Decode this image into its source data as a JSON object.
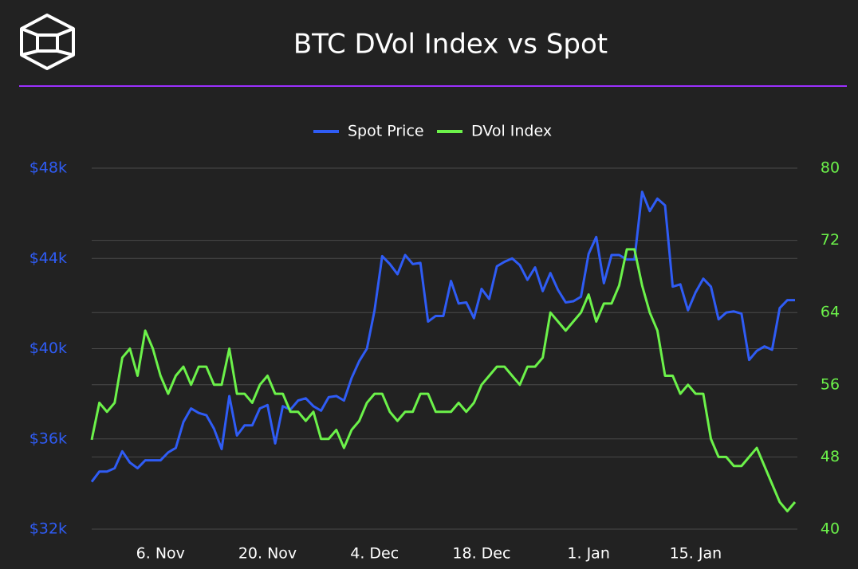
{
  "chart_data": {
    "type": "line",
    "title": "BTC DVol Index vs Spot",
    "categories": [
      null,
      null,
      null,
      null,
      null,
      null,
      null,
      null,
      null,
      "6. Nov",
      null,
      null,
      null,
      null,
      null,
      null,
      null,
      null,
      null,
      null,
      null,
      null,
      null,
      "20. Nov",
      null,
      null,
      null,
      null,
      null,
      null,
      null,
      null,
      null,
      null,
      null,
      null,
      null,
      "4. Dec",
      null,
      null,
      null,
      null,
      null,
      null,
      null,
      null,
      null,
      null,
      null,
      null,
      null,
      "18. Dec",
      null,
      null,
      null,
      null,
      null,
      null,
      null,
      null,
      null,
      null,
      null,
      null,
      null,
      "1. Jan",
      null,
      null,
      null,
      null,
      null,
      null,
      null,
      null,
      null,
      null,
      null,
      null,
      null,
      "15. Jan",
      null,
      null,
      null,
      null,
      null,
      null,
      null,
      null,
      null,
      null,
      null,
      null,
      null
    ],
    "series": [
      {
        "name": "Spot Price",
        "color": "#2f5cf5",
        "axis": "y",
        "values": [
          34100,
          34550,
          34550,
          34700,
          35450,
          34950,
          34700,
          35050,
          35050,
          35050,
          35400,
          35600,
          36750,
          37350,
          37150,
          37050,
          36450,
          35550,
          37900,
          36150,
          36600,
          36600,
          37350,
          37500,
          35800,
          37450,
          37300,
          37700,
          37800,
          37450,
          37250,
          37850,
          37900,
          37700,
          38700,
          39450,
          40000,
          41700,
          44100,
          43750,
          43300,
          44150,
          43750,
          43800,
          41200,
          41450,
          41450,
          43000,
          42000,
          42050,
          41350,
          42650,
          42200,
          43650,
          43850,
          44000,
          43700,
          43050,
          43600,
          42550,
          43350,
          42600,
          42050,
          42100,
          42300,
          44200,
          44950,
          42900,
          44150,
          44150,
          43950,
          43950,
          46950,
          46100,
          46650,
          46350,
          42750,
          42850,
          41700,
          42500,
          43100,
          42750,
          41300,
          41600,
          41650,
          41550,
          39500,
          39900,
          40100,
          39950,
          41800,
          42150,
          42150
        ]
      },
      {
        "name": "DVol Index",
        "color": "#6cf24a",
        "axis": "y2",
        "values": [
          49.9,
          54,
          53,
          54,
          59,
          60,
          57,
          62,
          60,
          57,
          55,
          57,
          58,
          56,
          58,
          58,
          56,
          56,
          60,
          55,
          55,
          54,
          56,
          57,
          55,
          55,
          53,
          53,
          52,
          53,
          50,
          50,
          51,
          49,
          51,
          52,
          54,
          55,
          55,
          53,
          52,
          53,
          53,
          55,
          55,
          53,
          53,
          53,
          54,
          53,
          54,
          56,
          57,
          58,
          58,
          57,
          56,
          58,
          58,
          59,
          64,
          63,
          62,
          63,
          64,
          66,
          63,
          65,
          65,
          67,
          71,
          71,
          67,
          64,
          62,
          57,
          57,
          55,
          56,
          55,
          55,
          50,
          48,
          48,
          47,
          47,
          48,
          49,
          47,
          45,
          43,
          42,
          43
        ]
      }
    ],
    "ylim": [
      32000,
      48000
    ],
    "yticks": [
      {
        "value": 32000,
        "label": "$32k"
      },
      {
        "value": 36000,
        "label": "$36k"
      },
      {
        "value": 40000,
        "label": "$40k"
      },
      {
        "value": 44000,
        "label": "$44k"
      },
      {
        "value": 48000,
        "label": "$48k"
      }
    ],
    "y2lim": [
      40,
      80
    ],
    "y2ticks": [
      40,
      48,
      56,
      64,
      72,
      80
    ],
    "grid": true
  }
}
